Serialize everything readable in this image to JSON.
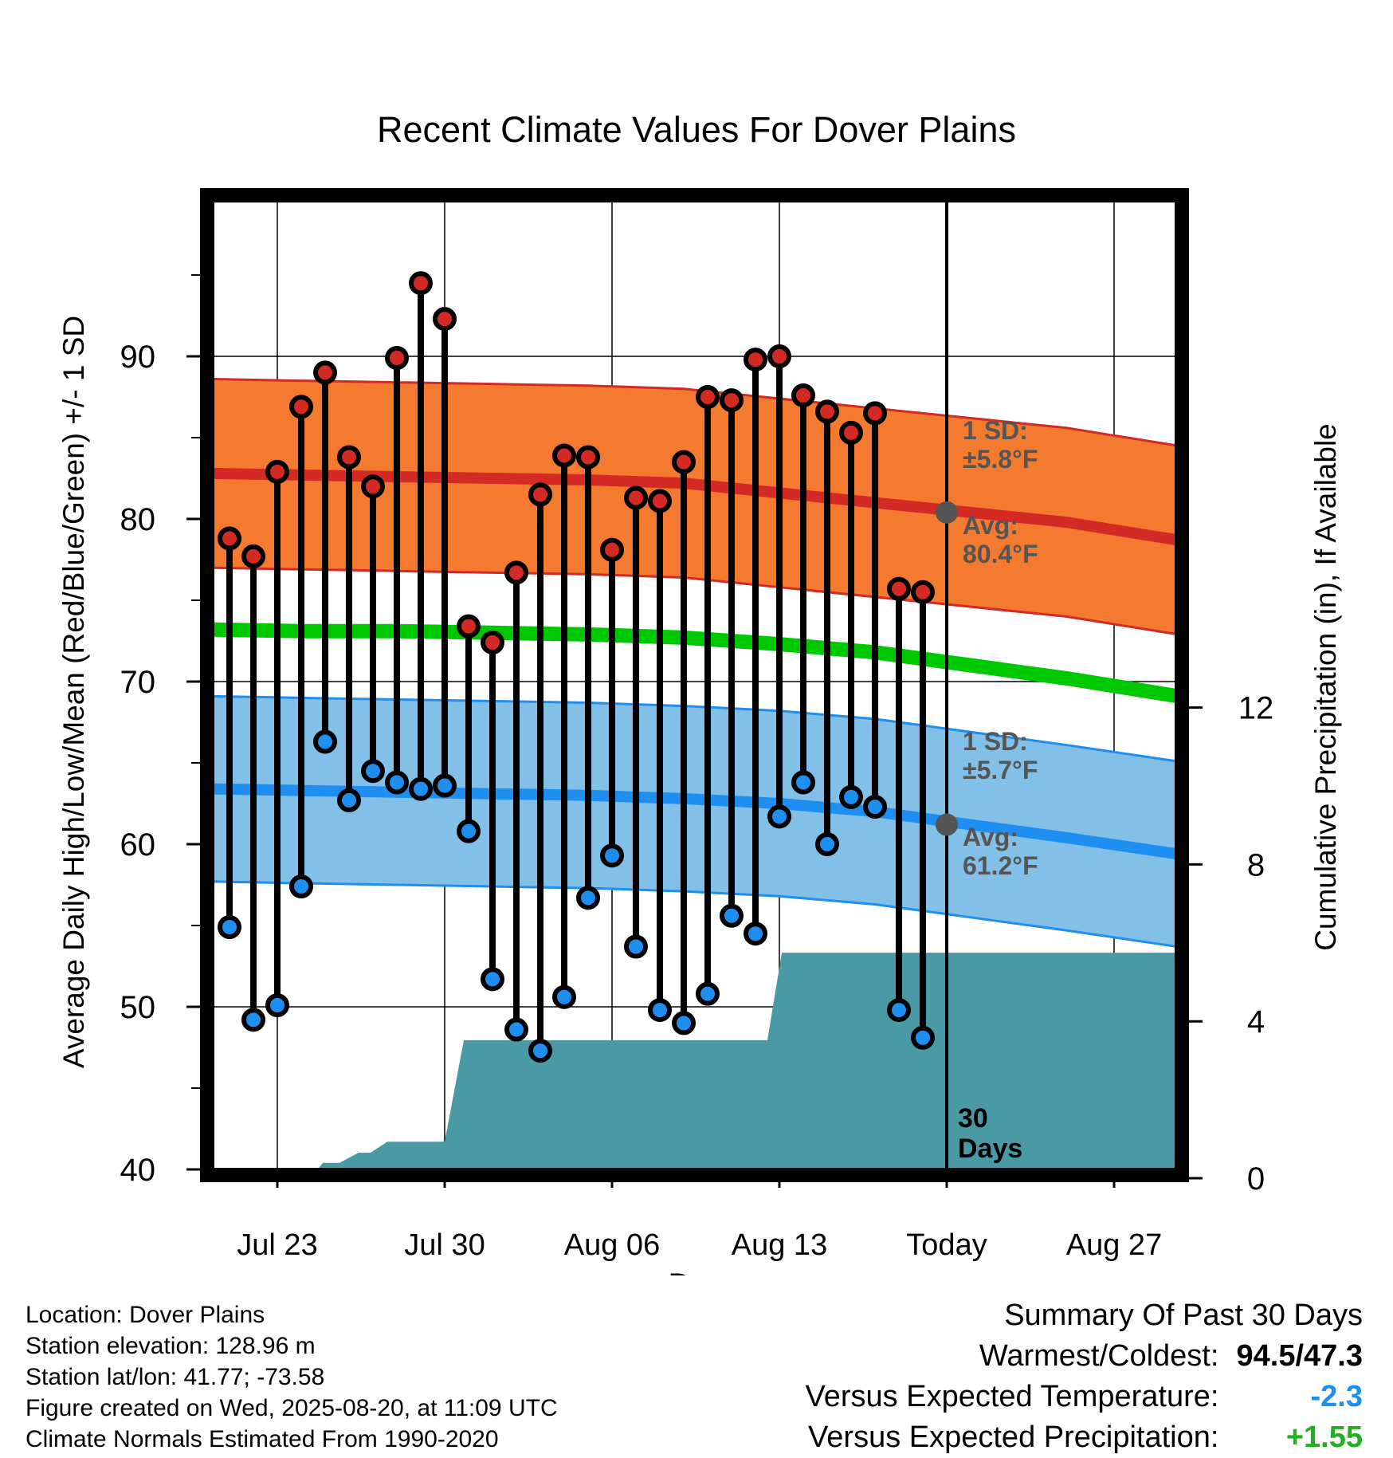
{
  "chart_data": {
    "type": "line",
    "title": "Recent Climate Values For Dover Plains",
    "xlabel": "Day",
    "ylabel_left": "Average Daily High/Low/Mean (Red/Blue/Green) +/- 1 SD",
    "ylabel_right": "Cumulative Precipitation (in), If Available",
    "ylim_left": [
      40,
      100
    ],
    "ylim_right": [
      0,
      20
    ],
    "left_ticks": [
      "40",
      "50",
      "60",
      "70",
      "80",
      "90"
    ],
    "right_ticks": [
      "0",
      "4",
      "8",
      "12"
    ],
    "x_ticks": [
      "Jul 23",
      "Jul 30",
      "Aug 06",
      "Aug 13",
      "Today",
      "Aug 27"
    ],
    "x_tick_days": [
      0,
      7,
      14,
      21,
      28,
      35
    ],
    "xlim_days": [
      -2.7,
      38.1
    ],
    "today_label": "30\nDays",
    "grid": true,
    "daily": {
      "day": [
        -2,
        -1,
        0,
        1,
        2,
        3,
        4,
        5,
        6,
        7,
        8,
        9,
        10,
        11,
        12,
        13,
        14,
        15,
        16,
        17,
        18,
        19,
        20,
        21,
        22,
        23,
        24,
        25,
        26,
        27
      ],
      "high": [
        78.8,
        77.7,
        82.9,
        86.9,
        89.0,
        83.8,
        82.0,
        89.9,
        94.5,
        92.3,
        73.4,
        72.4,
        76.7,
        81.5,
        83.9,
        83.8,
        78.1,
        81.3,
        81.1,
        83.5,
        87.5,
        87.3,
        89.8,
        90.0,
        87.6,
        86.6,
        85.3,
        86.5,
        75.7,
        75.5
      ],
      "low": [
        54.9,
        49.2,
        50.1,
        57.4,
        66.3,
        62.7,
        64.5,
        63.8,
        63.4,
        63.6,
        60.8,
        51.7,
        48.6,
        47.3,
        50.6,
        56.7,
        59.3,
        53.7,
        49.8,
        49.0,
        50.8,
        55.6,
        54.5,
        61.7,
        63.8,
        60.0,
        62.9,
        62.3,
        49.8,
        48.1
      ]
    },
    "normal_high": {
      "avg": [
        82.8,
        82.7,
        82.6,
        82.5,
        82.4,
        82.2,
        81.6,
        81.0,
        80.4,
        79.8,
        78.6
      ],
      "sd_label": "1 SD:\n±5.8°F",
      "avg_label": "Avg:\n80.4°F",
      "today_avg": 80.4,
      "sd": 5.8
    },
    "normal_mean": {
      "avg": [
        73.2,
        73.1,
        73.1,
        73.0,
        72.9,
        72.7,
        72.3,
        71.8,
        71.0,
        70.2,
        69.0
      ]
    },
    "normal_low": {
      "avg": [
        63.4,
        63.3,
        63.2,
        63.1,
        63.0,
        62.8,
        62.5,
        62.0,
        61.2,
        60.4,
        59.3
      ],
      "sd_label": "1 SD:\n±5.7°F",
      "avg_label": "Avg:\n61.2°F",
      "today_avg": 61.2,
      "sd": 5.7
    },
    "normal_days": [
      -2.7,
      1,
      5,
      9,
      13,
      17,
      21,
      25,
      29,
      33,
      38.1
    ],
    "precip_cumulative": {
      "day": [
        -2.7,
        1.4,
        1.9,
        2.6,
        3.4,
        3.9,
        4.6,
        5.5,
        6.5,
        7.0,
        7.8,
        8.5,
        9.5,
        12.0,
        16.0,
        20.0,
        20.5,
        21.1,
        22.0,
        25.0,
        30.0,
        38.1
      ],
      "inches": [
        0,
        0,
        0.39,
        0.39,
        0.65,
        0.65,
        0.93,
        0.93,
        0.93,
        0.93,
        3.52,
        3.52,
        3.52,
        3.52,
        3.52,
        3.52,
        3.52,
        5.75,
        5.75,
        5.75,
        5.75,
        5.75
      ]
    },
    "colors": {
      "high_band": "#f47a30",
      "high_line": "#d42a26",
      "mean_line": "#00c800",
      "low_band": "#82c0e8",
      "low_line": "#1e8ff0",
      "precip": "#4a9aa5",
      "avg_dot": "#555555",
      "high_dot": "#d42a26",
      "low_dot": "#1e8ff0",
      "sd_text": "#555555"
    }
  },
  "footer": {
    "location": "Location: Dover Plains",
    "elevation": "Station elevation: 128.96 m",
    "latlon": "Station lat/lon: 41.77; -73.58",
    "created": "Figure created on Wed, 2025-08-20, at 11:09 UTC",
    "normals": "Climate Normals Estimated From 1990-2020"
  },
  "summary": {
    "title": "Summary Of Past 30 Days",
    "warm_cold_label": "Warmest/Coldest:",
    "warm_cold_value": "94.5/47.3",
    "temp_label": "Versus Expected Temperature:",
    "temp_value": "-2.3",
    "temp_color": "#1e8ff0",
    "precip_label": "Versus Expected Precipitation:",
    "precip_value": "+1.55",
    "precip_color": "#22b022"
  }
}
